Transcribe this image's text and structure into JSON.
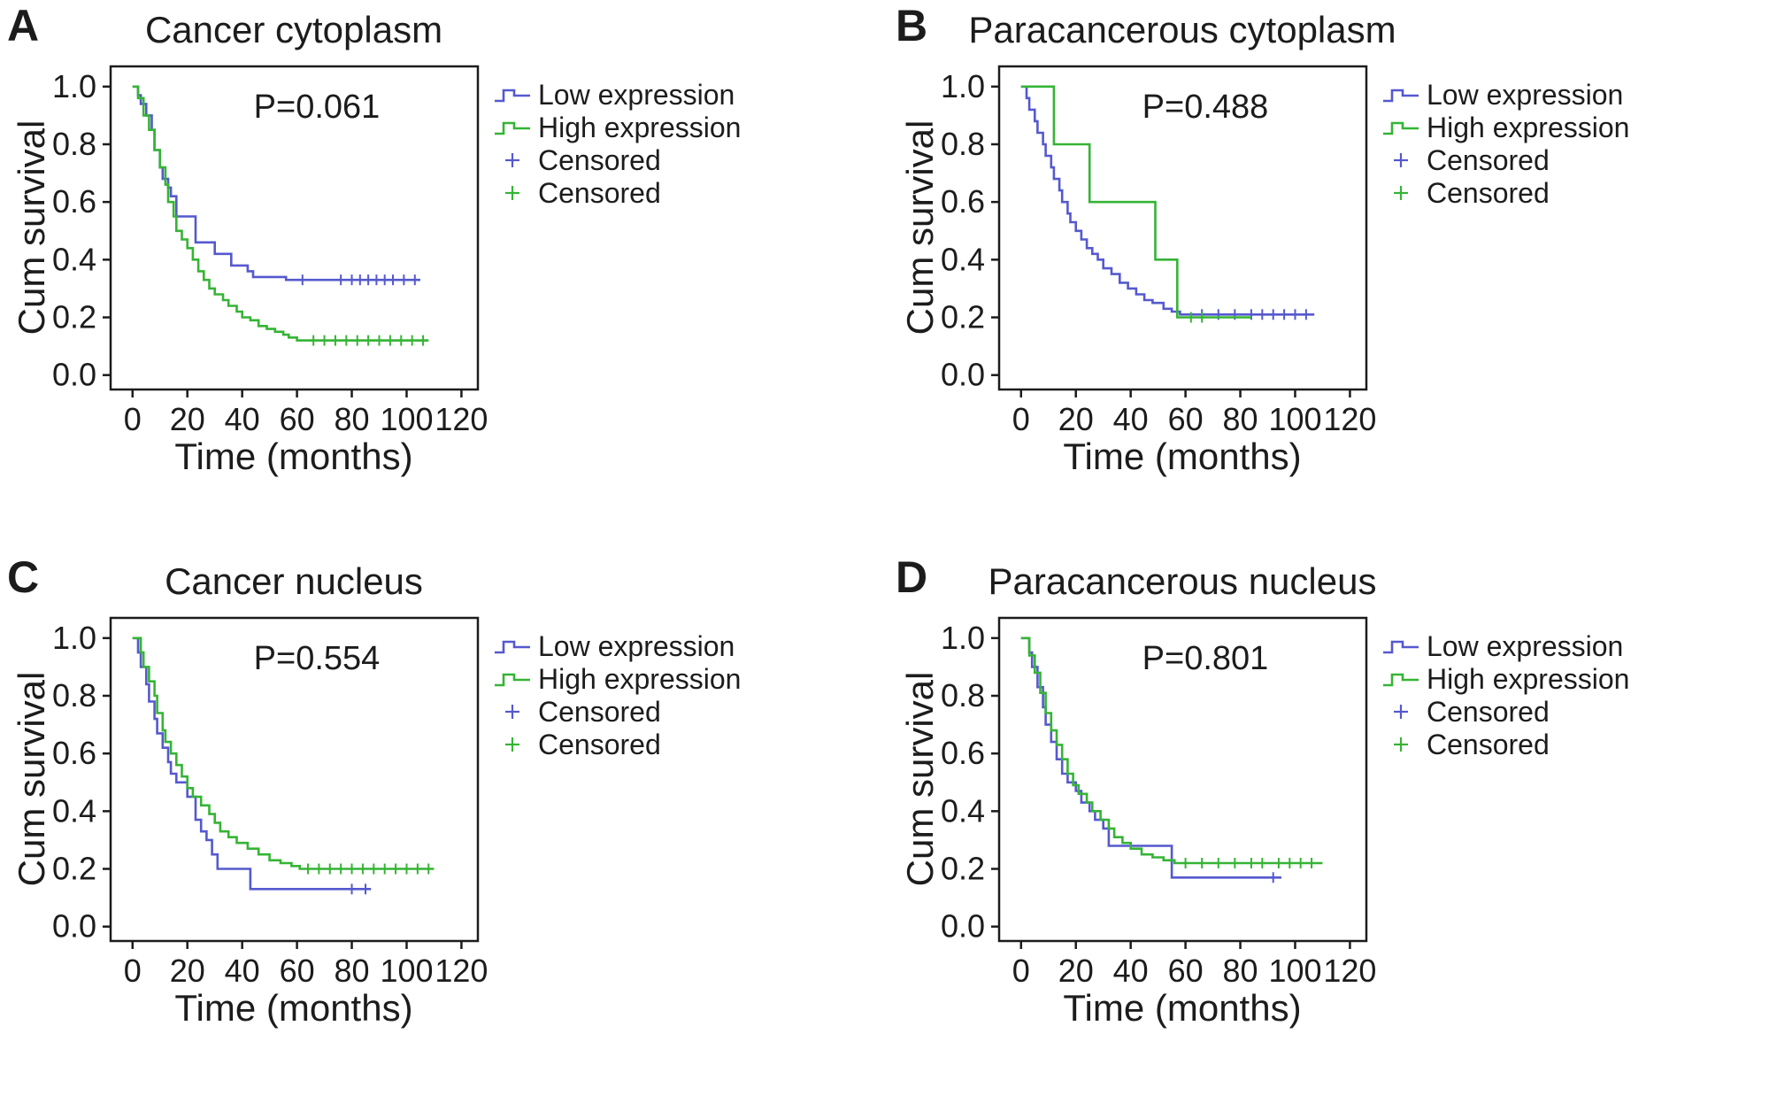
{
  "colors": {
    "low": "#5559ce",
    "high": "#35b435",
    "axis": "#1c1c1c",
    "background": "#ffffff"
  },
  "legend": {
    "items": [
      {
        "label": "Low expression",
        "marker": "step",
        "color": "low"
      },
      {
        "label": "High expression",
        "marker": "step",
        "color": "high"
      },
      {
        "label": "Censored",
        "marker": "plus",
        "color": "low"
      },
      {
        "label": "Censored",
        "marker": "plus",
        "color": "high"
      }
    ]
  },
  "chart_data": [
    {
      "type": "line",
      "subtype": "kaplan-meier-step",
      "panel_label": "A",
      "title": "Cancer cytoplasm",
      "p_value_text": "P=0.061",
      "xlabel": "Time (months)",
      "ylabel": "Cum survival",
      "xlim": [
        -8,
        126
      ],
      "ylim": [
        -0.05,
        1.07
      ],
      "xticks": [
        0,
        20,
        40,
        60,
        80,
        100,
        120
      ],
      "xtick_labels": [
        "0",
        "20",
        "40",
        "60",
        "80",
        "100",
        "120"
      ],
      "yticks": [
        0.0,
        0.2,
        0.4,
        0.6,
        0.8,
        1.0
      ],
      "ytick_labels": [
        "0.0",
        "0.2",
        "0.4",
        "0.6",
        "0.8",
        "1.0"
      ],
      "series": [
        {
          "name": "Low expression",
          "color": "low",
          "points": [
            [
              0,
              1.0
            ],
            [
              2,
              0.97
            ],
            [
              3,
              0.94
            ],
            [
              5,
              0.9
            ],
            [
              7,
              0.85
            ],
            [
              8,
              0.78
            ],
            [
              10,
              0.72
            ],
            [
              11,
              0.68
            ],
            [
              13,
              0.65
            ],
            [
              14,
              0.62
            ],
            [
              16,
              0.55
            ],
            [
              23,
              0.46
            ],
            [
              30,
              0.42
            ],
            [
              36,
              0.38
            ],
            [
              42,
              0.36
            ],
            [
              44,
              0.34
            ],
            [
              56,
              0.33
            ]
          ],
          "end_x": 105,
          "censor_y": 0.33,
          "censor_x": [
            62,
            76,
            80,
            83,
            86,
            89,
            92,
            95,
            99,
            103
          ]
        },
        {
          "name": "High expression",
          "color": "high",
          "points": [
            [
              0,
              1.0
            ],
            [
              2,
              0.96
            ],
            [
              4,
              0.9
            ],
            [
              6,
              0.85
            ],
            [
              8,
              0.78
            ],
            [
              10,
              0.72
            ],
            [
              12,
              0.66
            ],
            [
              13,
              0.6
            ],
            [
              15,
              0.55
            ],
            [
              16,
              0.5
            ],
            [
              18,
              0.47
            ],
            [
              20,
              0.44
            ],
            [
              22,
              0.4
            ],
            [
              24,
              0.36
            ],
            [
              26,
              0.33
            ],
            [
              28,
              0.3
            ],
            [
              30,
              0.28
            ],
            [
              33,
              0.26
            ],
            [
              35,
              0.24
            ],
            [
              38,
              0.22
            ],
            [
              40,
              0.2
            ],
            [
              43,
              0.19
            ],
            [
              46,
              0.17
            ],
            [
              49,
              0.16
            ],
            [
              52,
              0.15
            ],
            [
              55,
              0.14
            ],
            [
              57,
              0.13
            ],
            [
              60,
              0.12
            ]
          ],
          "end_x": 108,
          "censor_y": 0.12,
          "censor_x": [
            66,
            70,
            74,
            78,
            82,
            86,
            90,
            94,
            98,
            102,
            106
          ]
        }
      ]
    },
    {
      "type": "line",
      "subtype": "kaplan-meier-step",
      "panel_label": "B",
      "title": "Paracancerous cytoplasm",
      "p_value_text": "P=0.488",
      "xlabel": "Time (months)",
      "ylabel": "Cum survival",
      "xlim": [
        -8,
        126
      ],
      "ylim": [
        -0.05,
        1.07
      ],
      "xticks": [
        0,
        20,
        40,
        60,
        80,
        100,
        120
      ],
      "xtick_labels": [
        "0",
        "20",
        "40",
        "60",
        "80",
        "100",
        "120"
      ],
      "yticks": [
        0.0,
        0.2,
        0.4,
        0.6,
        0.8,
        1.0
      ],
      "ytick_labels": [
        "0.0",
        "0.2",
        "0.4",
        "0.6",
        "0.8",
        "1.0"
      ],
      "series": [
        {
          "name": "Low expression",
          "color": "low",
          "points": [
            [
              0,
              1.0
            ],
            [
              2,
              0.96
            ],
            [
              3,
              0.92
            ],
            [
              5,
              0.88
            ],
            [
              6,
              0.84
            ],
            [
              8,
              0.8
            ],
            [
              9,
              0.76
            ],
            [
              11,
              0.72
            ],
            [
              12,
              0.68
            ],
            [
              14,
              0.64
            ],
            [
              15,
              0.6
            ],
            [
              17,
              0.56
            ],
            [
              18,
              0.53
            ],
            [
              20,
              0.5
            ],
            [
              22,
              0.47
            ],
            [
              24,
              0.44
            ],
            [
              26,
              0.42
            ],
            [
              28,
              0.4
            ],
            [
              30,
              0.37
            ],
            [
              33,
              0.35
            ],
            [
              36,
              0.32
            ],
            [
              39,
              0.3
            ],
            [
              42,
              0.28
            ],
            [
              45,
              0.26
            ],
            [
              48,
              0.25
            ],
            [
              52,
              0.23
            ],
            [
              55,
              0.22
            ],
            [
              58,
              0.21
            ]
          ],
          "end_x": 107,
          "censor_y": 0.21,
          "censor_x": [
            66,
            72,
            78,
            84,
            88,
            92,
            96,
            100,
            104
          ]
        },
        {
          "name": "High expression",
          "color": "high",
          "points": [
            [
              0,
              1.0
            ],
            [
              12,
              0.8
            ],
            [
              25,
              0.6
            ],
            [
              49,
              0.4
            ],
            [
              57,
              0.2
            ]
          ],
          "end_x": 84,
          "censor_y": 0.2,
          "censor_x": [
            62,
            66
          ]
        }
      ]
    },
    {
      "type": "line",
      "subtype": "kaplan-meier-step",
      "panel_label": "C",
      "title": "Cancer nucleus",
      "p_value_text": "P=0.554",
      "xlabel": "Time (months)",
      "ylabel": "Cum survival",
      "xlim": [
        -8,
        126
      ],
      "ylim": [
        -0.05,
        1.07
      ],
      "xticks": [
        0,
        20,
        40,
        60,
        80,
        100,
        120
      ],
      "xtick_labels": [
        "0",
        "20",
        "40",
        "60",
        "80",
        "100",
        "120"
      ],
      "yticks": [
        0.0,
        0.2,
        0.4,
        0.6,
        0.8,
        1.0
      ],
      "ytick_labels": [
        "0.0",
        "0.2",
        "0.4",
        "0.6",
        "0.8",
        "1.0"
      ],
      "series": [
        {
          "name": "Low expression",
          "color": "low",
          "points": [
            [
              0,
              1.0
            ],
            [
              2,
              0.95
            ],
            [
              3,
              0.9
            ],
            [
              5,
              0.84
            ],
            [
              6,
              0.78
            ],
            [
              8,
              0.72
            ],
            [
              9,
              0.67
            ],
            [
              11,
              0.62
            ],
            [
              13,
              0.57
            ],
            [
              14,
              0.53
            ],
            [
              16,
              0.5
            ],
            [
              20,
              0.45
            ],
            [
              23,
              0.37
            ],
            [
              25,
              0.33
            ],
            [
              27,
              0.3
            ],
            [
              29,
              0.25
            ],
            [
              31,
              0.2
            ],
            [
              43,
              0.13
            ]
          ],
          "end_x": 87,
          "censor_y": 0.13,
          "censor_x": [
            80,
            85
          ]
        },
        {
          "name": "High expression",
          "color": "high",
          "points": [
            [
              0,
              1.0
            ],
            [
              3,
              0.95
            ],
            [
              4,
              0.9
            ],
            [
              6,
              0.85
            ],
            [
              8,
              0.8
            ],
            [
              9,
              0.74
            ],
            [
              11,
              0.68
            ],
            [
              12,
              0.64
            ],
            [
              14,
              0.6
            ],
            [
              16,
              0.56
            ],
            [
              18,
              0.52
            ],
            [
              20,
              0.48
            ],
            [
              22,
              0.45
            ],
            [
              25,
              0.42
            ],
            [
              28,
              0.39
            ],
            [
              30,
              0.36
            ],
            [
              32,
              0.33
            ],
            [
              35,
              0.31
            ],
            [
              38,
              0.29
            ],
            [
              42,
              0.27
            ],
            [
              46,
              0.25
            ],
            [
              50,
              0.23
            ],
            [
              54,
              0.22
            ],
            [
              58,
              0.21
            ],
            [
              61,
              0.2
            ]
          ],
          "end_x": 110,
          "censor_y": 0.2,
          "censor_x": [
            64,
            68,
            72,
            76,
            80,
            84,
            88,
            92,
            96,
            100,
            104,
            108
          ]
        }
      ]
    },
    {
      "type": "line",
      "subtype": "kaplan-meier-step",
      "panel_label": "D",
      "title": "Paracancerous nucleus",
      "p_value_text": "P=0.801",
      "xlabel": "Time (months)",
      "ylabel": "Cum survival",
      "xlim": [
        -8,
        126
      ],
      "ylim": [
        -0.05,
        1.07
      ],
      "xticks": [
        0,
        20,
        40,
        60,
        80,
        100,
        120
      ],
      "xtick_labels": [
        "0",
        "20",
        "40",
        "60",
        "80",
        "100",
        "120"
      ],
      "yticks": [
        0.0,
        0.2,
        0.4,
        0.6,
        0.8,
        1.0
      ],
      "ytick_labels": [
        "0.0",
        "0.2",
        "0.4",
        "0.6",
        "0.8",
        "1.0"
      ],
      "series": [
        {
          "name": "Low expression",
          "color": "low",
          "points": [
            [
              0,
              1.0
            ],
            [
              3,
              0.95
            ],
            [
              4,
              0.9
            ],
            [
              6,
              0.83
            ],
            [
              8,
              0.76
            ],
            [
              9,
              0.7
            ],
            [
              11,
              0.64
            ],
            [
              13,
              0.58
            ],
            [
              15,
              0.53
            ],
            [
              17,
              0.5
            ],
            [
              20,
              0.47
            ],
            [
              22,
              0.43
            ],
            [
              25,
              0.4
            ],
            [
              27,
              0.37
            ],
            [
              30,
              0.34
            ],
            [
              32,
              0.28
            ],
            [
              55,
              0.17
            ]
          ],
          "end_x": 95,
          "censor_y": 0.17,
          "censor_x": [
            92
          ]
        },
        {
          "name": "High expression",
          "color": "high",
          "points": [
            [
              0,
              1.0
            ],
            [
              3,
              0.94
            ],
            [
              5,
              0.88
            ],
            [
              7,
              0.81
            ],
            [
              9,
              0.74
            ],
            [
              11,
              0.68
            ],
            [
              13,
              0.63
            ],
            [
              15,
              0.58
            ],
            [
              17,
              0.53
            ],
            [
              19,
              0.49
            ],
            [
              21,
              0.46
            ],
            [
              24,
              0.43
            ],
            [
              26,
              0.4
            ],
            [
              29,
              0.37
            ],
            [
              32,
              0.34
            ],
            [
              34,
              0.31
            ],
            [
              37,
              0.29
            ],
            [
              40,
              0.27
            ],
            [
              44,
              0.25
            ],
            [
              48,
              0.24
            ],
            [
              52,
              0.23
            ],
            [
              56,
              0.22
            ]
          ],
          "end_x": 110,
          "censor_y": 0.22,
          "censor_x": [
            60,
            66,
            72,
            78,
            84,
            88,
            94,
            98,
            102,
            106
          ]
        }
      ]
    }
  ]
}
